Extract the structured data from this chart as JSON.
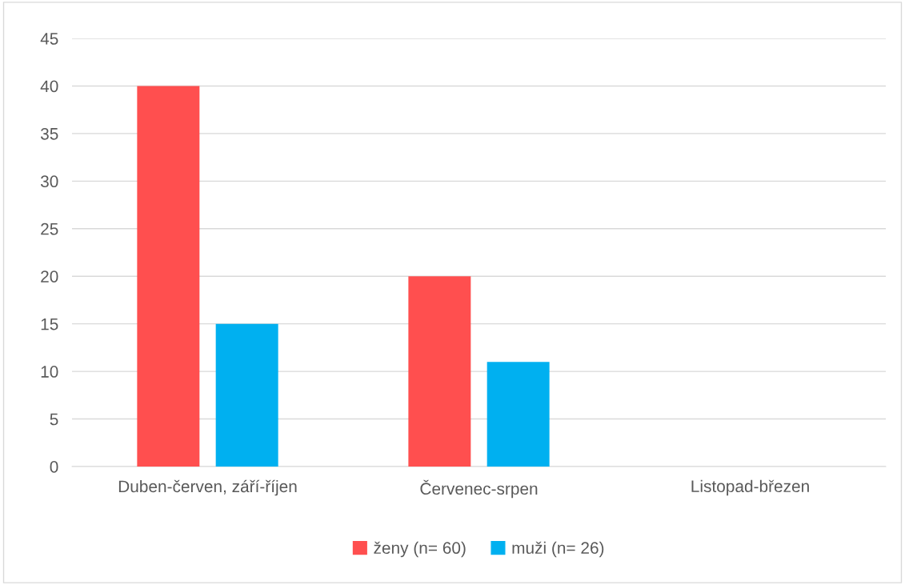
{
  "chart_data": {
    "type": "bar",
    "categories": [
      "Duben-červen, září-říjen",
      "Červenec-srpen",
      "Listopad-březen"
    ],
    "series": [
      {
        "name": "ženy (n= 60)",
        "color": "#ff4f4f",
        "values": [
          40,
          20,
          0
        ]
      },
      {
        "name": "muži (n= 26)",
        "color": "#00b0f0",
        "values": [
          15,
          11,
          0
        ]
      }
    ],
    "ylim": [
      0,
      45
    ],
    "yticks": [
      0,
      5,
      10,
      15,
      20,
      25,
      30,
      35,
      40,
      45
    ],
    "grid": "y",
    "legend": "bottom"
  }
}
